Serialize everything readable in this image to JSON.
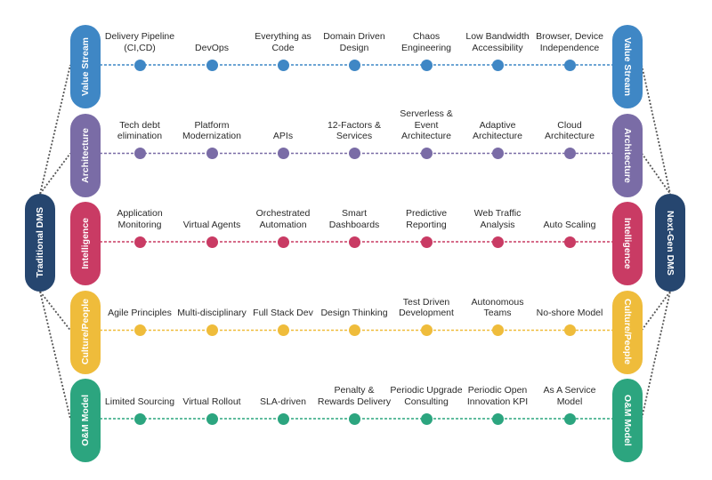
{
  "hubs": {
    "left": {
      "label": "Traditional DMS",
      "color": "#26466f"
    },
    "right": {
      "label": "Next-Gen DMS",
      "color": "#26466f"
    }
  },
  "rows": [
    {
      "label": "Value Stream",
      "color": "#3f87c5",
      "items": [
        "Delivery Pipeline (CI,CD)",
        "DevOps",
        "Everything as Code",
        "Domain Driven Design",
        "Chaos Engineering",
        "Low Bandwidth Accessibility",
        "Browser, Device Independence"
      ]
    },
    {
      "label": "Architecture",
      "color": "#7a6ca6",
      "items": [
        "Tech debt elimination",
        "Platform Modernization",
        "APIs",
        "12-Factors & Services",
        "Serverless & Event Architecture",
        "Adaptive Architecture",
        "Cloud Architecture"
      ]
    },
    {
      "label": "Intelligence",
      "color": "#c93b64",
      "items": [
        "Application Monitoring",
        "Virtual Agents",
        "Orchestrated Automation",
        "Smart Dashboards",
        "Predictive Reporting",
        "Web Traffic Analysis",
        "Auto Scaling"
      ]
    },
    {
      "label": "Culture/People",
      "color": "#efbc3b",
      "items": [
        "Agile Principles",
        "Multi-disciplinary",
        "Full Stack Dev",
        "Design Thinking",
        "Test Driven Development",
        "Autonomous Teams",
        "No-shore Model"
      ]
    },
    {
      "label": "O&M Model",
      "color": "#2ca57f",
      "items": [
        "Limited Sourcing",
        "Virtual Rollout",
        "SLA-driven",
        "Penalty & Rewards Delivery",
        "Periodic Upgrade Consulting",
        "Periodic Open Innovation KPI",
        "As A Service Model"
      ]
    }
  ]
}
